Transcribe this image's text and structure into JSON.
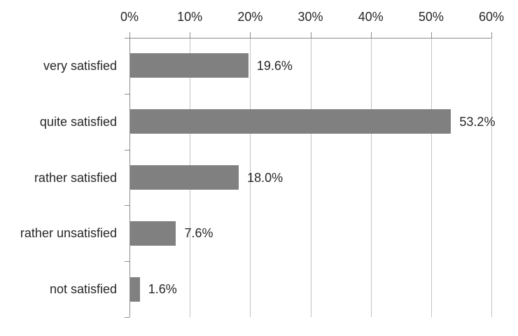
{
  "chart_data": {
    "type": "bar",
    "orientation": "horizontal",
    "title": "",
    "xlabel": "",
    "ylabel": "",
    "categories": [
      "very satisfied",
      "quite satisfied",
      "rather satisfied",
      "rather unsatisfied",
      "not satisfied"
    ],
    "values": [
      19.6,
      53.2,
      18.0,
      7.6,
      1.6
    ],
    "value_labels": [
      "19.6%",
      "53.2%",
      "18.0%",
      "7.6%",
      "1.6%"
    ],
    "x_axis": {
      "position": "top",
      "min": 0,
      "max": 60,
      "tick_step": 10,
      "tick_labels": [
        "0%",
        "10%",
        "20%",
        "30%",
        "40%",
        "50%",
        "60%"
      ]
    },
    "grid": true,
    "legend": false,
    "colors": {
      "bar": "#808080",
      "gridline": "#c3c3c3",
      "axis": "#8c8c8c",
      "text": "#262626",
      "background": "#ffffff"
    }
  }
}
